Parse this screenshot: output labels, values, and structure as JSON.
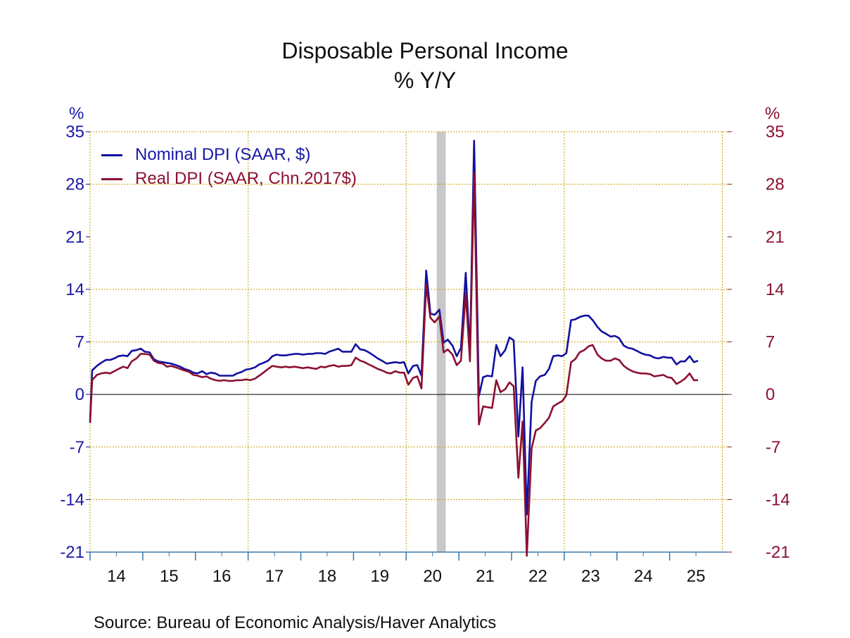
{
  "chart_data": {
    "type": "line",
    "title": "Disposable Personal Income",
    "subtitle": "% Y/Y",
    "source": "Source:  Bureau of Economic Analysis/Haver Analytics",
    "ylabel_left": "%",
    "ylabel_right": "%",
    "ylim": [
      -21,
      35
    ],
    "yticks": [
      35,
      28,
      21,
      14,
      7,
      0,
      -7,
      -14,
      -21
    ],
    "ytick_labels": [
      "35",
      "28",
      "21",
      "14",
      "7",
      "0",
      "-7",
      "-14",
      "-21"
    ],
    "xlim": [
      2013.5,
      2025.6
    ],
    "x_labels": [
      {
        "label": "14",
        "x": 2014.0
      },
      {
        "label": "15",
        "x": 2015.0
      },
      {
        "label": "16",
        "x": 2016.0
      },
      {
        "label": "17",
        "x": 2017.0
      },
      {
        "label": "18",
        "x": 2018.0
      },
      {
        "label": "19",
        "x": 2019.0
      },
      {
        "label": "20",
        "x": 2020.0
      },
      {
        "label": "21",
        "x": 2021.0
      },
      {
        "label": "22",
        "x": 2022.0
      },
      {
        "label": "23",
        "x": 2023.0
      },
      {
        "label": "24",
        "x": 2024.0
      },
      {
        "label": "25",
        "x": 2025.0
      }
    ],
    "x_minor_ticks": [
      2014,
      2015,
      2016,
      2017,
      2018,
      2019,
      2020,
      2021,
      2022,
      2023,
      2024,
      2025
    ],
    "x_gridlines": [
      2013.5,
      2016.5,
      2019.5,
      2022.5,
      2025.5
    ],
    "y_gridlines": [
      35,
      28,
      14,
      7,
      -7,
      -14
    ],
    "recession": [
      2020.08,
      2020.25
    ],
    "colors": {
      "nominal": "#1010a0",
      "real": "#8b1030",
      "grid": "#c8a000",
      "axis": "#3a78a8",
      "recession": "#c8c8c8"
    },
    "legend_position": "top-left",
    "series": [
      {
        "name": "Nominal DPI (SAAR, $)",
        "color": "#1010a0",
        "points": [
          [
            2013.5,
            -3.5
          ],
          [
            2013.54,
            3.2
          ],
          [
            2013.63,
            3.8
          ],
          [
            2013.71,
            4.2
          ],
          [
            2013.8,
            4.6
          ],
          [
            2013.88,
            4.6
          ],
          [
            2013.96,
            4.8
          ],
          [
            2014.04,
            5.1
          ],
          [
            2014.13,
            5.2
          ],
          [
            2014.21,
            5.1
          ],
          [
            2014.29,
            5.8
          ],
          [
            2014.38,
            5.9
          ],
          [
            2014.46,
            6.1
          ],
          [
            2014.54,
            5.7
          ],
          [
            2014.63,
            5.6
          ],
          [
            2014.71,
            4.7
          ],
          [
            2014.79,
            4.4
          ],
          [
            2014.88,
            4.3
          ],
          [
            2014.96,
            4.2
          ],
          [
            2015.04,
            4.1
          ],
          [
            2015.13,
            3.9
          ],
          [
            2015.21,
            3.7
          ],
          [
            2015.29,
            3.4
          ],
          [
            2015.38,
            3.2
          ],
          [
            2015.46,
            2.9
          ],
          [
            2015.54,
            2.8
          ],
          [
            2015.63,
            3.1
          ],
          [
            2015.71,
            2.7
          ],
          [
            2015.79,
            2.9
          ],
          [
            2015.88,
            2.8
          ],
          [
            2015.96,
            2.5
          ],
          [
            2016.04,
            2.5
          ],
          [
            2016.13,
            2.5
          ],
          [
            2016.21,
            2.5
          ],
          [
            2016.29,
            2.8
          ],
          [
            2016.38,
            3.0
          ],
          [
            2016.46,
            3.3
          ],
          [
            2016.54,
            3.4
          ],
          [
            2016.63,
            3.6
          ],
          [
            2016.71,
            4.0
          ],
          [
            2016.79,
            4.2
          ],
          [
            2016.88,
            4.5
          ],
          [
            2016.96,
            5.1
          ],
          [
            2017.04,
            5.3
          ],
          [
            2017.13,
            5.2
          ],
          [
            2017.21,
            5.2
          ],
          [
            2017.29,
            5.3
          ],
          [
            2017.38,
            5.4
          ],
          [
            2017.46,
            5.4
          ],
          [
            2017.54,
            5.3
          ],
          [
            2017.63,
            5.4
          ],
          [
            2017.71,
            5.4
          ],
          [
            2017.79,
            5.5
          ],
          [
            2017.88,
            5.5
          ],
          [
            2017.96,
            5.4
          ],
          [
            2018.04,
            5.7
          ],
          [
            2018.13,
            5.9
          ],
          [
            2018.21,
            6.1
          ],
          [
            2018.29,
            5.7
          ],
          [
            2018.38,
            5.7
          ],
          [
            2018.46,
            5.7
          ],
          [
            2018.54,
            6.7
          ],
          [
            2018.63,
            6.0
          ],
          [
            2018.71,
            5.9
          ],
          [
            2018.79,
            5.6
          ],
          [
            2018.88,
            5.2
          ],
          [
            2018.96,
            4.8
          ],
          [
            2019.04,
            4.5
          ],
          [
            2019.13,
            4.1
          ],
          [
            2019.21,
            4.2
          ],
          [
            2019.29,
            4.3
          ],
          [
            2019.38,
            4.2
          ],
          [
            2019.46,
            4.3
          ],
          [
            2019.54,
            2.8
          ],
          [
            2019.63,
            3.8
          ],
          [
            2019.71,
            3.9
          ],
          [
            2019.79,
            2.5
          ],
          [
            2019.88,
            16.5
          ],
          [
            2019.96,
            10.8
          ],
          [
            2020.04,
            10.6
          ],
          [
            2020.13,
            11.3
          ],
          [
            2020.21,
            6.9
          ],
          [
            2020.29,
            7.3
          ],
          [
            2020.38,
            6.5
          ],
          [
            2020.46,
            5.1
          ],
          [
            2020.54,
            6.2
          ],
          [
            2020.63,
            16.2
          ],
          [
            2020.71,
            5.5
          ],
          [
            2020.79,
            33.8
          ],
          [
            2020.88,
            -0.2
          ],
          [
            2020.96,
            2.3
          ],
          [
            2021.04,
            2.5
          ],
          [
            2021.13,
            2.4
          ],
          [
            2021.21,
            6.6
          ],
          [
            2021.29,
            5.1
          ],
          [
            2021.38,
            5.9
          ],
          [
            2021.46,
            7.6
          ],
          [
            2021.54,
            7.2
          ],
          [
            2021.63,
            -5.6
          ],
          [
            2021.71,
            3.6
          ],
          [
            2021.79,
            -16.0
          ],
          [
            2021.88,
            -1.0
          ],
          [
            2021.96,
            1.8
          ],
          [
            2022.04,
            2.4
          ],
          [
            2022.13,
            2.6
          ],
          [
            2022.21,
            3.4
          ],
          [
            2022.29,
            5.1
          ],
          [
            2022.38,
            5.2
          ],
          [
            2022.46,
            5.1
          ],
          [
            2022.54,
            5.5
          ],
          [
            2022.63,
            9.9
          ],
          [
            2022.71,
            10.0
          ],
          [
            2022.79,
            10.3
          ],
          [
            2022.88,
            10.5
          ],
          [
            2022.96,
            10.5
          ],
          [
            2023.04,
            9.9
          ],
          [
            2023.13,
            9.0
          ],
          [
            2023.21,
            8.4
          ],
          [
            2023.29,
            8.1
          ],
          [
            2023.38,
            7.7
          ],
          [
            2023.46,
            7.8
          ],
          [
            2023.54,
            7.5
          ],
          [
            2023.63,
            6.5
          ],
          [
            2023.71,
            6.2
          ],
          [
            2023.79,
            6.1
          ],
          [
            2023.88,
            5.8
          ],
          [
            2023.96,
            5.5
          ],
          [
            2024.04,
            5.3
          ],
          [
            2024.13,
            5.2
          ],
          [
            2024.21,
            4.9
          ],
          [
            2024.29,
            4.8
          ],
          [
            2024.38,
            5.0
          ],
          [
            2024.46,
            4.9
          ],
          [
            2024.54,
            4.9
          ],
          [
            2024.63,
            4.0
          ],
          [
            2024.71,
            4.4
          ],
          [
            2024.79,
            4.4
          ],
          [
            2024.88,
            5.1
          ],
          [
            2024.96,
            4.3
          ],
          [
            2025.04,
            4.5
          ]
        ]
      },
      {
        "name": "Real DPI (SAAR, Chn.2017$)",
        "color": "#8b1030",
        "points": [
          [
            2013.5,
            -3.8
          ],
          [
            2013.54,
            1.9
          ],
          [
            2013.63,
            2.6
          ],
          [
            2013.71,
            2.8
          ],
          [
            2013.8,
            2.9
          ],
          [
            2013.88,
            2.8
          ],
          [
            2013.96,
            3.1
          ],
          [
            2014.04,
            3.4
          ],
          [
            2014.13,
            3.7
          ],
          [
            2014.21,
            3.5
          ],
          [
            2014.29,
            4.4
          ],
          [
            2014.38,
            4.8
          ],
          [
            2014.46,
            5.4
          ],
          [
            2014.54,
            5.4
          ],
          [
            2014.63,
            5.3
          ],
          [
            2014.71,
            4.5
          ],
          [
            2014.79,
            4.2
          ],
          [
            2014.88,
            4.1
          ],
          [
            2014.96,
            3.7
          ],
          [
            2015.04,
            3.8
          ],
          [
            2015.13,
            3.6
          ],
          [
            2015.21,
            3.4
          ],
          [
            2015.29,
            3.2
          ],
          [
            2015.38,
            3.0
          ],
          [
            2015.46,
            2.6
          ],
          [
            2015.54,
            2.5
          ],
          [
            2015.63,
            2.3
          ],
          [
            2015.71,
            2.4
          ],
          [
            2015.79,
            2.1
          ],
          [
            2015.88,
            1.9
          ],
          [
            2015.96,
            1.8
          ],
          [
            2016.04,
            1.9
          ],
          [
            2016.13,
            1.8
          ],
          [
            2016.21,
            1.8
          ],
          [
            2016.29,
            1.9
          ],
          [
            2016.38,
            1.9
          ],
          [
            2016.46,
            2.0
          ],
          [
            2016.54,
            1.9
          ],
          [
            2016.63,
            2.1
          ],
          [
            2016.71,
            2.5
          ],
          [
            2016.79,
            2.9
          ],
          [
            2016.88,
            3.4
          ],
          [
            2016.96,
            3.8
          ],
          [
            2017.04,
            3.7
          ],
          [
            2017.13,
            3.6
          ],
          [
            2017.21,
            3.7
          ],
          [
            2017.29,
            3.6
          ],
          [
            2017.38,
            3.7
          ],
          [
            2017.46,
            3.6
          ],
          [
            2017.54,
            3.5
          ],
          [
            2017.63,
            3.6
          ],
          [
            2017.71,
            3.5
          ],
          [
            2017.79,
            3.4
          ],
          [
            2017.88,
            3.7
          ],
          [
            2017.96,
            3.6
          ],
          [
            2018.04,
            3.8
          ],
          [
            2018.13,
            3.9
          ],
          [
            2018.21,
            3.7
          ],
          [
            2018.29,
            3.8
          ],
          [
            2018.38,
            3.8
          ],
          [
            2018.46,
            3.9
          ],
          [
            2018.54,
            4.9
          ],
          [
            2018.63,
            4.5
          ],
          [
            2018.71,
            4.3
          ],
          [
            2018.79,
            4.0
          ],
          [
            2018.88,
            3.7
          ],
          [
            2018.96,
            3.4
          ],
          [
            2019.04,
            3.2
          ],
          [
            2019.13,
            2.9
          ],
          [
            2019.21,
            2.8
          ],
          [
            2019.29,
            3.1
          ],
          [
            2019.38,
            2.9
          ],
          [
            2019.46,
            2.9
          ],
          [
            2019.54,
            1.3
          ],
          [
            2019.63,
            2.2
          ],
          [
            2019.71,
            2.4
          ],
          [
            2019.79,
            0.8
          ],
          [
            2019.88,
            14.6
          ],
          [
            2019.96,
            10.2
          ],
          [
            2020.04,
            9.6
          ],
          [
            2020.13,
            10.4
          ],
          [
            2020.21,
            5.6
          ],
          [
            2020.29,
            6.0
          ],
          [
            2020.38,
            5.3
          ],
          [
            2020.46,
            3.9
          ],
          [
            2020.54,
            4.5
          ],
          [
            2020.63,
            13.5
          ],
          [
            2020.71,
            4.4
          ],
          [
            2020.79,
            29.5
          ],
          [
            2020.88,
            -4.0
          ],
          [
            2020.96,
            -1.6
          ],
          [
            2021.04,
            -1.7
          ],
          [
            2021.13,
            -1.8
          ],
          [
            2021.21,
            1.9
          ],
          [
            2021.29,
            0.3
          ],
          [
            2021.38,
            0.7
          ],
          [
            2021.46,
            1.6
          ],
          [
            2021.54,
            1.1
          ],
          [
            2021.63,
            -11.1
          ],
          [
            2021.71,
            -3.6
          ],
          [
            2021.79,
            -21.5
          ],
          [
            2021.88,
            -7.2
          ],
          [
            2021.96,
            -4.8
          ],
          [
            2022.04,
            -4.5
          ],
          [
            2022.13,
            -3.8
          ],
          [
            2022.21,
            -3.1
          ],
          [
            2022.29,
            -1.6
          ],
          [
            2022.38,
            -1.2
          ],
          [
            2022.46,
            -0.9
          ],
          [
            2022.54,
            -0.1
          ],
          [
            2022.63,
            4.3
          ],
          [
            2022.71,
            4.7
          ],
          [
            2022.79,
            5.6
          ],
          [
            2022.88,
            5.9
          ],
          [
            2022.96,
            6.4
          ],
          [
            2023.04,
            6.6
          ],
          [
            2023.13,
            5.3
          ],
          [
            2023.21,
            4.8
          ],
          [
            2023.29,
            4.5
          ],
          [
            2023.38,
            4.5
          ],
          [
            2023.46,
            4.8
          ],
          [
            2023.54,
            4.6
          ],
          [
            2023.63,
            3.8
          ],
          [
            2023.71,
            3.4
          ],
          [
            2023.79,
            3.1
          ],
          [
            2023.88,
            2.9
          ],
          [
            2023.96,
            2.8
          ],
          [
            2024.04,
            2.8
          ],
          [
            2024.13,
            2.7
          ],
          [
            2024.21,
            2.4
          ],
          [
            2024.29,
            2.5
          ],
          [
            2024.38,
            2.6
          ],
          [
            2024.46,
            2.3
          ],
          [
            2024.54,
            2.2
          ],
          [
            2024.63,
            1.4
          ],
          [
            2024.71,
            1.7
          ],
          [
            2024.79,
            2.1
          ],
          [
            2024.88,
            2.8
          ],
          [
            2024.96,
            1.9
          ],
          [
            2025.04,
            1.9
          ]
        ]
      }
    ]
  }
}
